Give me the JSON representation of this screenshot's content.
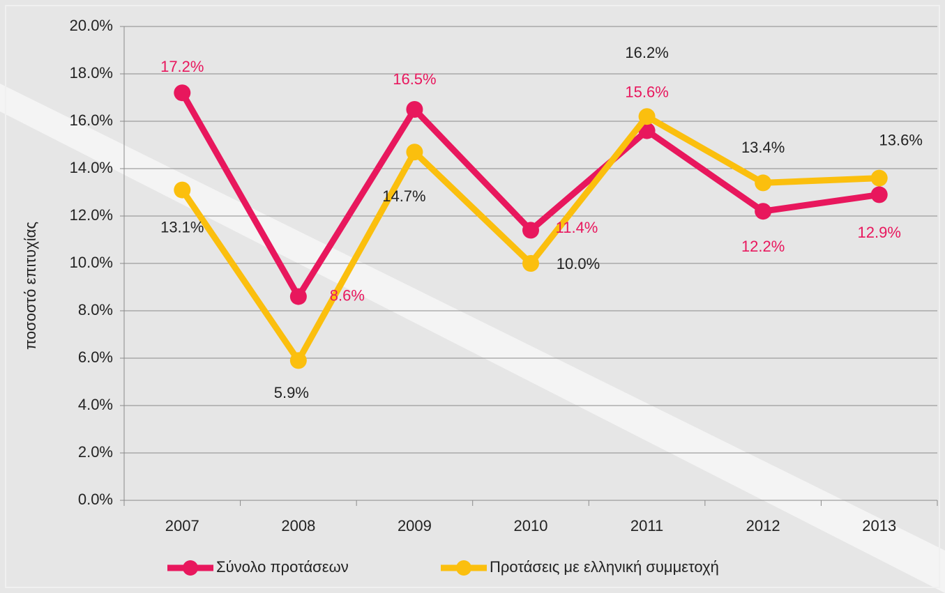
{
  "chart_data": {
    "type": "line",
    "ylabel": "ποσοστό επιτυχίας",
    "categories": [
      "2007",
      "2008",
      "2009",
      "2010",
      "2011",
      "2012",
      "2013"
    ],
    "series": [
      {
        "name": "Σύνολο προτάσεων",
        "color": "#e8175d",
        "values": [
          17.2,
          8.6,
          16.5,
          11.4,
          15.6,
          12.2,
          12.9
        ],
        "value_labels": [
          "17.2%",
          "8.6%",
          "16.5%",
          "11.4%",
          "15.6%",
          "12.2%",
          "12.9%"
        ]
      },
      {
        "name": "Προτάσεις με ελληνική συμμετοχή",
        "color": "#fbbf0e",
        "values": [
          13.1,
          5.9,
          14.7,
          10.0,
          16.2,
          13.4,
          13.6
        ],
        "value_labels": [
          "13.1%",
          "5.9%",
          "14.7%",
          "10.0%",
          "16.2%",
          "13.4%",
          "13.6%"
        ]
      }
    ],
    "ylim": [
      0,
      20
    ],
    "yticks": [
      {
        "value": 0,
        "label": "0.0%"
      },
      {
        "value": 2,
        "label": "2.0%"
      },
      {
        "value": 4,
        "label": "4.0%"
      },
      {
        "value": 6,
        "label": "6.0%"
      },
      {
        "value": 8,
        "label": "8.0%"
      },
      {
        "value": 10,
        "label": "10.0%"
      },
      {
        "value": 12,
        "label": "12.0%"
      },
      {
        "value": 14,
        "label": "14.0%"
      },
      {
        "value": 16,
        "label": "16.0%"
      },
      {
        "value": 18,
        "label": "18.0%"
      },
      {
        "value": 20,
        "label": "20.0%"
      }
    ],
    "grid": true,
    "legend": "bottom"
  }
}
